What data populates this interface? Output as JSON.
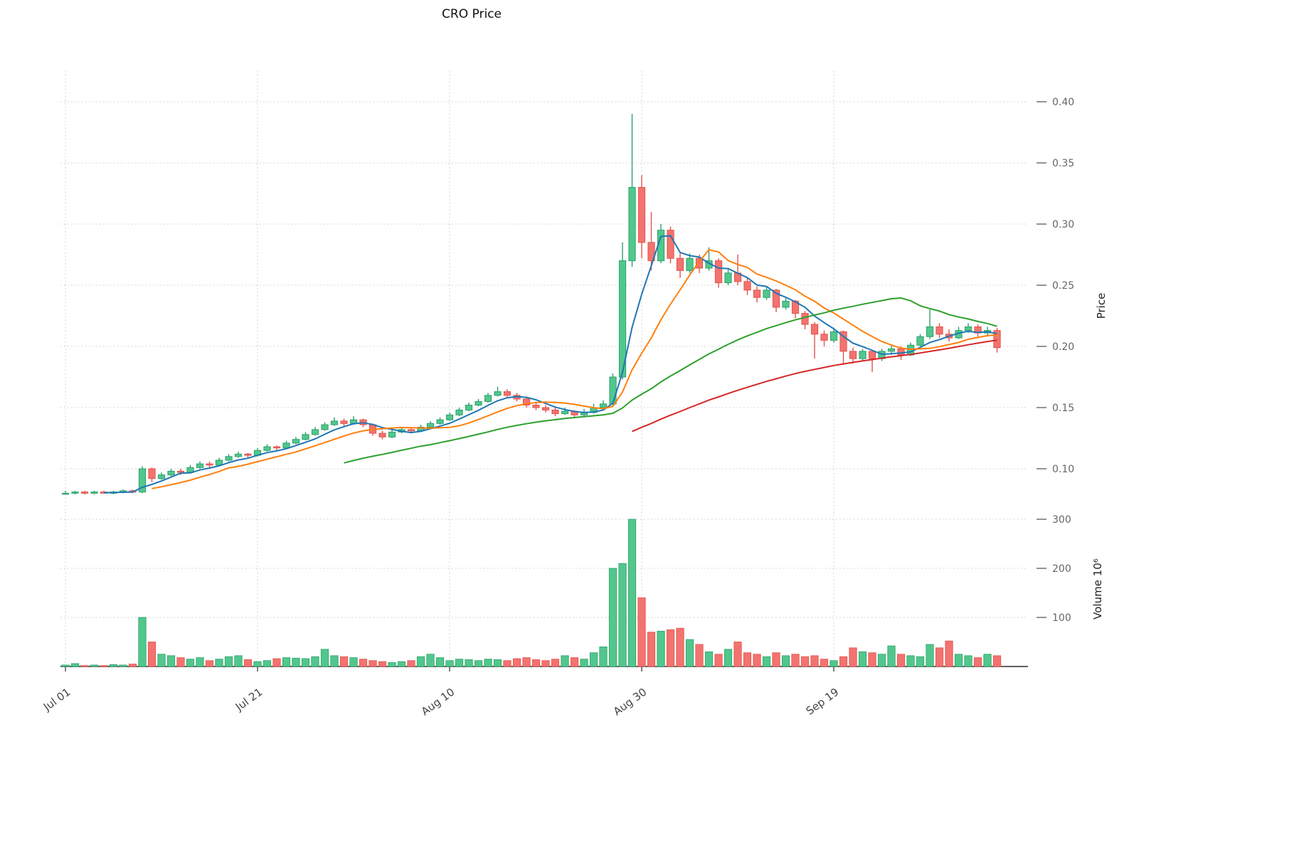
{
  "title": "CRO Price",
  "colors": {
    "up_fill": "#52c78c",
    "up_edge": "#2ca06c",
    "down_fill": "#f3736f",
    "down_edge": "#e0534f",
    "grid": "#c9c9c9",
    "tick_label": "#666666",
    "x_tick_label": "#444444",
    "axis_label": "#222222",
    "spine": "#2b2b2b"
  },
  "chart_data": {
    "type": "candlestick",
    "title": "CRO Price",
    "price_axis": {
      "label": "Price",
      "ticks": [
        0.1,
        0.15,
        0.2,
        0.25,
        0.3,
        0.35,
        0.4
      ],
      "min": 0.07,
      "max": 0.415
    },
    "volume_axis": {
      "label": "Volume  10⁶",
      "ticks": [
        100,
        200,
        300
      ],
      "min": 0,
      "max": 310
    },
    "x_ticks": {
      "indices": [
        0,
        20,
        40,
        60,
        80
      ],
      "labels": [
        "Jul 01",
        "Jul 21",
        "Aug 10",
        "Aug 30",
        "Sep 19"
      ]
    },
    "moving_averages": [
      {
        "name": "ma5",
        "period": 5,
        "color": "#1f77b4"
      },
      {
        "name": "ma10",
        "period": 10,
        "color": "#ff7f0e"
      },
      {
        "name": "ma30",
        "period": 30,
        "color": "#2ca02c"
      },
      {
        "name": "ma60",
        "period": 60,
        "color": "#d62728"
      }
    ],
    "open": [
      0.08,
      0.08,
      0.081,
      0.08,
      0.081,
      0.08,
      0.081,
      0.082,
      0.081,
      0.1,
      0.092,
      0.095,
      0.098,
      0.097,
      0.101,
      0.104,
      0.103,
      0.107,
      0.11,
      0.112,
      0.111,
      0.115,
      0.118,
      0.117,
      0.121,
      0.124,
      0.128,
      0.132,
      0.136,
      0.139,
      0.137,
      0.14,
      0.136,
      0.129,
      0.126,
      0.13,
      0.132,
      0.131,
      0.134,
      0.137,
      0.14,
      0.144,
      0.148,
      0.152,
      0.155,
      0.16,
      0.163,
      0.16,
      0.157,
      0.152,
      0.15,
      0.148,
      0.145,
      0.147,
      0.144,
      0.146,
      0.15,
      0.153,
      0.175,
      0.27,
      0.33,
      0.285,
      0.27,
      0.295,
      0.272,
      0.262,
      0.272,
      0.264,
      0.27,
      0.252,
      0.26,
      0.253,
      0.246,
      0.24,
      0.246,
      0.232,
      0.237,
      0.227,
      0.218,
      0.21,
      0.205,
      0.212,
      0.196,
      0.19,
      0.196,
      0.19,
      0.196,
      0.198,
      0.193,
      0.201,
      0.208,
      0.216,
      0.21,
      0.207,
      0.213,
      0.216,
      0.211,
      0.213
    ],
    "high": [
      0.082,
      0.082,
      0.082,
      0.082,
      0.082,
      0.082,
      0.083,
      0.083,
      0.102,
      0.101,
      0.097,
      0.1,
      0.1,
      0.103,
      0.106,
      0.106,
      0.109,
      0.112,
      0.114,
      0.113,
      0.117,
      0.12,
      0.119,
      0.123,
      0.126,
      0.13,
      0.134,
      0.138,
      0.142,
      0.141,
      0.143,
      0.141,
      0.137,
      0.131,
      0.132,
      0.134,
      0.134,
      0.136,
      0.139,
      0.142,
      0.146,
      0.15,
      0.154,
      0.157,
      0.162,
      0.167,
      0.165,
      0.162,
      0.159,
      0.154,
      0.152,
      0.15,
      0.15,
      0.148,
      0.149,
      0.153,
      0.156,
      0.178,
      0.285,
      0.39,
      0.34,
      0.31,
      0.3,
      0.298,
      0.276,
      0.276,
      0.275,
      0.281,
      0.272,
      0.264,
      0.275,
      0.256,
      0.249,
      0.249,
      0.247,
      0.24,
      0.238,
      0.229,
      0.22,
      0.213,
      0.215,
      0.213,
      0.199,
      0.198,
      0.197,
      0.198,
      0.201,
      0.2,
      0.203,
      0.21,
      0.23,
      0.219,
      0.214,
      0.216,
      0.219,
      0.218,
      0.216,
      0.215
    ],
    "low": [
      0.079,
      0.079,
      0.079,
      0.079,
      0.08,
      0.079,
      0.08,
      0.08,
      0.08,
      0.089,
      0.091,
      0.094,
      0.095,
      0.096,
      0.1,
      0.101,
      0.102,
      0.106,
      0.109,
      0.109,
      0.11,
      0.114,
      0.115,
      0.116,
      0.12,
      0.123,
      0.127,
      0.131,
      0.135,
      0.135,
      0.136,
      0.134,
      0.127,
      0.124,
      0.125,
      0.129,
      0.129,
      0.13,
      0.133,
      0.136,
      0.139,
      0.143,
      0.147,
      0.151,
      0.154,
      0.159,
      0.158,
      0.155,
      0.15,
      0.148,
      0.146,
      0.143,
      0.144,
      0.142,
      0.143,
      0.145,
      0.149,
      0.152,
      0.173,
      0.265,
      0.272,
      0.262,
      0.268,
      0.268,
      0.256,
      0.26,
      0.26,
      0.262,
      0.248,
      0.25,
      0.25,
      0.242,
      0.236,
      0.238,
      0.228,
      0.23,
      0.223,
      0.214,
      0.19,
      0.2,
      0.203,
      0.185,
      0.186,
      0.188,
      0.179,
      0.188,
      0.193,
      0.189,
      0.192,
      0.2,
      0.206,
      0.207,
      0.204,
      0.206,
      0.211,
      0.208,
      0.208,
      0.195
    ],
    "close": [
      0.08,
      0.081,
      0.08,
      0.081,
      0.08,
      0.081,
      0.082,
      0.081,
      0.1,
      0.092,
      0.095,
      0.098,
      0.097,
      0.101,
      0.104,
      0.103,
      0.107,
      0.11,
      0.112,
      0.111,
      0.115,
      0.118,
      0.117,
      0.121,
      0.124,
      0.128,
      0.132,
      0.136,
      0.139,
      0.137,
      0.14,
      0.136,
      0.129,
      0.126,
      0.13,
      0.132,
      0.131,
      0.134,
      0.137,
      0.14,
      0.144,
      0.148,
      0.152,
      0.155,
      0.16,
      0.163,
      0.16,
      0.157,
      0.152,
      0.15,
      0.148,
      0.145,
      0.147,
      0.144,
      0.146,
      0.15,
      0.153,
      0.175,
      0.27,
      0.33,
      0.285,
      0.27,
      0.295,
      0.272,
      0.262,
      0.272,
      0.264,
      0.27,
      0.252,
      0.26,
      0.253,
      0.246,
      0.24,
      0.246,
      0.232,
      0.237,
      0.227,
      0.218,
      0.21,
      0.205,
      0.212,
      0.196,
      0.19,
      0.196,
      0.19,
      0.196,
      0.198,
      0.193,
      0.201,
      0.208,
      0.216,
      0.21,
      0.207,
      0.213,
      0.216,
      0.211,
      0.213,
      0.199
    ],
    "volume_millions": [
      3,
      6,
      2,
      3,
      2,
      4,
      3,
      5,
      100,
      50,
      25,
      22,
      18,
      15,
      18,
      12,
      15,
      20,
      22,
      14,
      10,
      12,
      16,
      18,
      17,
      16,
      20,
      35,
      22,
      20,
      18,
      15,
      12,
      10,
      8,
      10,
      12,
      20,
      25,
      18,
      12,
      15,
      14,
      12,
      15,
      14,
      12,
      16,
      18,
      14,
      12,
      15,
      22,
      18,
      15,
      28,
      40,
      200,
      210,
      300,
      140,
      70,
      72,
      75,
      78,
      55,
      45,
      30,
      25,
      35,
      50,
      28,
      25,
      20,
      28,
      22,
      25,
      20,
      22,
      15,
      12,
      20,
      38,
      30,
      28,
      25,
      42,
      25,
      22,
      20,
      45,
      38,
      52,
      25,
      22,
      18,
      25,
      22
    ]
  }
}
